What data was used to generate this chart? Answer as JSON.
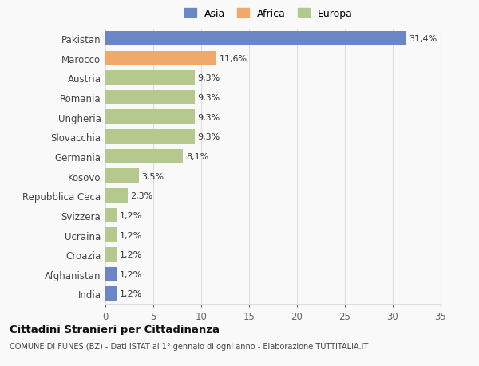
{
  "countries": [
    "Pakistan",
    "Marocco",
    "Austria",
    "Romania",
    "Ungheria",
    "Slovacchia",
    "Germania",
    "Kosovo",
    "Repubblica Ceca",
    "Svizzera",
    "Ucraina",
    "Croazia",
    "Afghanistan",
    "India"
  ],
  "values": [
    31.4,
    11.6,
    9.3,
    9.3,
    9.3,
    9.3,
    8.1,
    3.5,
    2.3,
    1.2,
    1.2,
    1.2,
    1.2,
    1.2
  ],
  "labels": [
    "31,4%",
    "11,6%",
    "9,3%",
    "9,3%",
    "9,3%",
    "9,3%",
    "8,1%",
    "3,5%",
    "2,3%",
    "1,2%",
    "1,2%",
    "1,2%",
    "1,2%",
    "1,2%"
  ],
  "colors": [
    "#6b86c4",
    "#f0a86b",
    "#b5c98e",
    "#b5c98e",
    "#b5c98e",
    "#b5c98e",
    "#b5c98e",
    "#b5c98e",
    "#b5c98e",
    "#b5c98e",
    "#b5c98e",
    "#b5c98e",
    "#6b86c4",
    "#6b86c4"
  ],
  "legend_labels": [
    "Asia",
    "Africa",
    "Europa"
  ],
  "legend_colors": [
    "#6b86c4",
    "#f0a86b",
    "#b5c98e"
  ],
  "title": "Cittadini Stranieri per Cittadinanza",
  "subtitle": "COMUNE DI FUNES (BZ) - Dati ISTAT al 1° gennaio di ogni anno - Elaborazione TUTTITALIA.IT",
  "xlim": [
    0,
    35
  ],
  "xticks": [
    0,
    5,
    10,
    15,
    20,
    25,
    30,
    35
  ],
  "background_color": "#f9f9f9",
  "grid_color": "#dddddd"
}
